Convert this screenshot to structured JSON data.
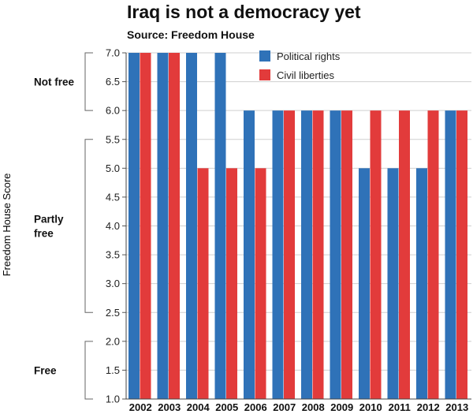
{
  "title": "Iraq is not a democracy yet",
  "subtitle": "Source: Freedom House",
  "chart_data": {
    "type": "bar",
    "ylabel": "Freedom House Score",
    "ylim": [
      1.0,
      7.0
    ],
    "yticks": [
      "1.0",
      "1.5",
      "2.0",
      "2.5",
      "3.0",
      "3.5",
      "4.0",
      "4.5",
      "5.0",
      "5.5",
      "6.0",
      "6.5",
      "7.0"
    ],
    "categories": [
      "2002",
      "2003",
      "2004",
      "2005",
      "2006",
      "2007",
      "2008",
      "2009",
      "2010",
      "2011",
      "2012",
      "2013"
    ],
    "series": [
      {
        "name": "Political rights",
        "color": "#2f72b8",
        "values": [
          7,
          7,
          7,
          7,
          6,
          6,
          6,
          6,
          5,
          5,
          5,
          6
        ]
      },
      {
        "name": "Civil liberties",
        "color": "#e23b3b",
        "values": [
          7,
          7,
          5,
          5,
          5,
          6,
          6,
          6,
          6,
          6,
          6,
          6
        ]
      }
    ],
    "bands": [
      {
        "lines": [
          "Not free"
        ],
        "from": 6.0,
        "to": 7.0
      },
      {
        "lines": [
          "Partly",
          "free"
        ],
        "from": 2.5,
        "to": 5.5
      },
      {
        "lines": [
          "Free"
        ],
        "from": 1.0,
        "to": 2.0
      }
    ],
    "legend_position": "top-right",
    "grid": true
  }
}
